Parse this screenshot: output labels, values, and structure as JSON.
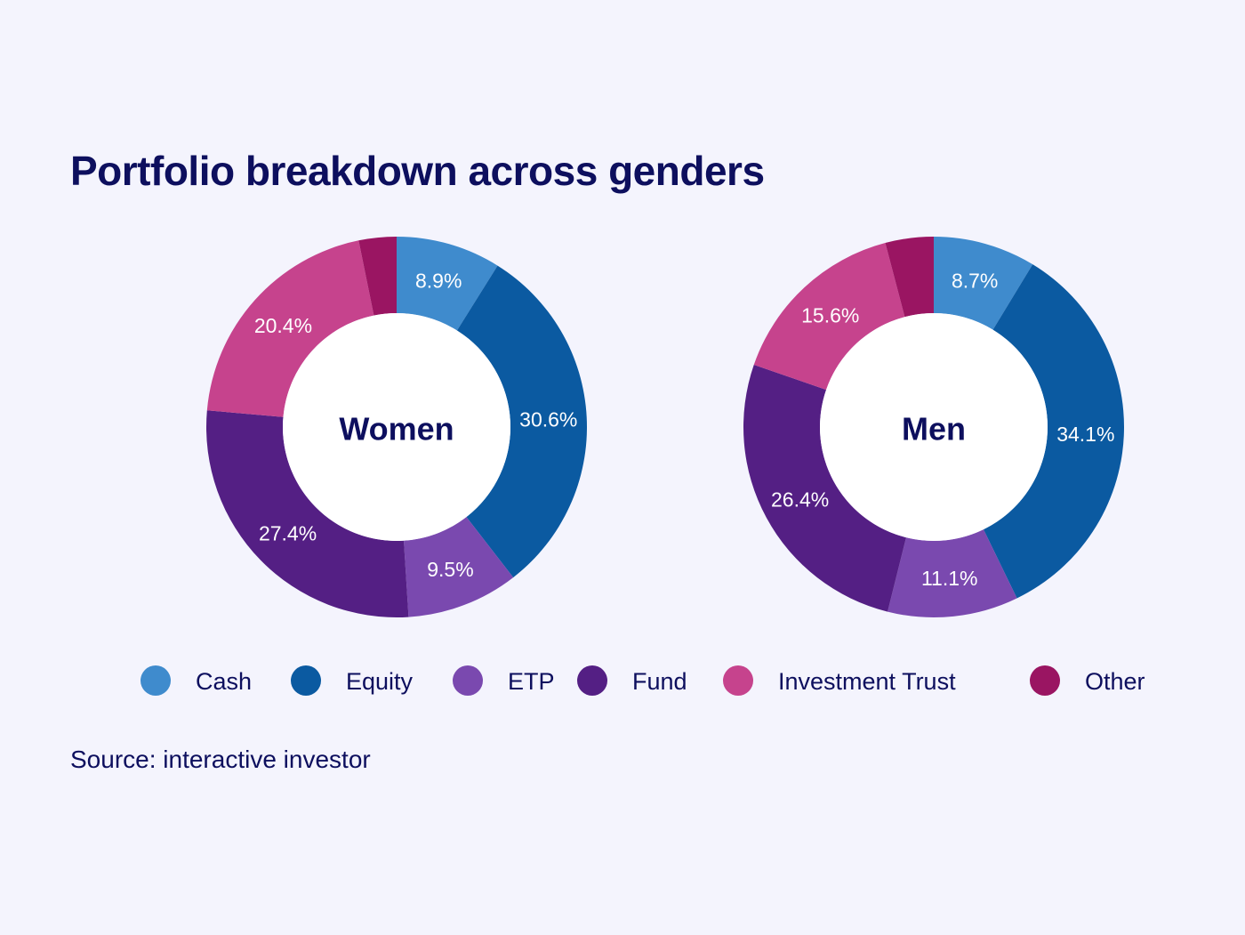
{
  "title": "Portfolio breakdown across genders",
  "source": "Source: interactive investor",
  "chart_data": {
    "type": "pie",
    "variant": "donut",
    "categories": [
      "Cash",
      "Equity",
      "ETP",
      "Fund",
      "Investment Trust",
      "Other"
    ],
    "colors": [
      "#3f8bcd",
      "#0b5aa1",
      "#7a49af",
      "#541f84",
      "#c6438d",
      "#9a1562"
    ],
    "series": [
      {
        "name": "Women",
        "values": [
          8.9,
          30.6,
          9.5,
          27.4,
          20.4,
          3.2
        ],
        "labels": [
          "8.9%",
          "30.6%",
          "9.5%",
          "27.4%",
          "20.4%",
          ""
        ]
      },
      {
        "name": "Men",
        "values": [
          8.7,
          34.1,
          11.1,
          26.4,
          15.6,
          4.1
        ],
        "labels": [
          "8.7%",
          "34.1%",
          "11.1%",
          "26.4%",
          "15.6%",
          ""
        ]
      }
    ],
    "legend_position": "bottom"
  }
}
